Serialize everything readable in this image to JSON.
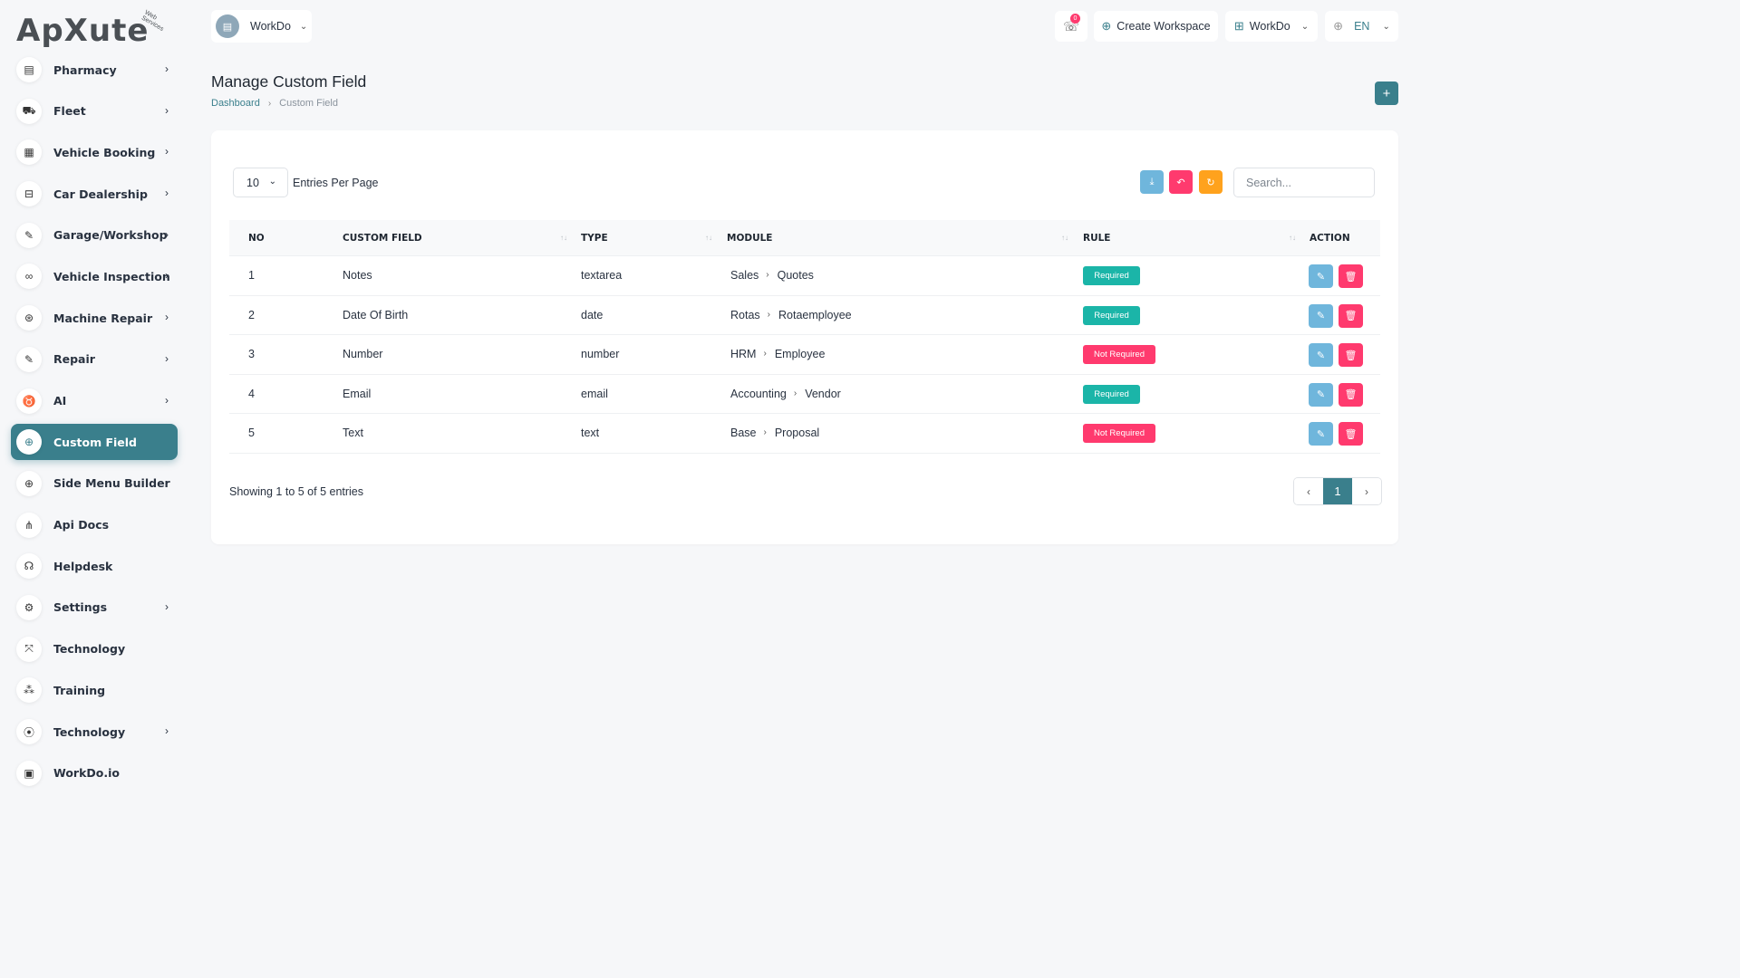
{
  "brand": {
    "logo_text": "ApXute",
    "logo_sub": "Web Services"
  },
  "sidebar": {
    "items": [
      {
        "label": "Pharmacy",
        "icon": "clipboard-icon",
        "glyph": "▤",
        "chevron": true,
        "active": false
      },
      {
        "label": "Fleet",
        "icon": "truck-icon",
        "glyph": "⛟",
        "chevron": true,
        "active": false
      },
      {
        "label": "Vehicle Booking",
        "icon": "calendar-icon",
        "glyph": "▦",
        "chevron": true,
        "active": false
      },
      {
        "label": "Car Dealership",
        "icon": "car-icon",
        "glyph": "⊟",
        "chevron": true,
        "active": false
      },
      {
        "label": "Garage/Workshop",
        "icon": "wrench-icon",
        "glyph": "✎",
        "chevron": true,
        "active": false
      },
      {
        "label": "Vehicle Inspection",
        "icon": "motorbike-icon",
        "glyph": "∞",
        "chevron": true,
        "active": false
      },
      {
        "label": "Machine Repair",
        "icon": "gear-circle-icon",
        "glyph": "⊛",
        "chevron": true,
        "active": false
      },
      {
        "label": "Repair",
        "icon": "tool-icon",
        "glyph": "✎",
        "chevron": true,
        "active": false
      },
      {
        "label": "AI",
        "icon": "ai-icon",
        "glyph": "♉",
        "chevron": true,
        "active": false
      },
      {
        "label": "Custom Field",
        "icon": "plus-circle-icon",
        "glyph": "⊕",
        "chevron": false,
        "active": true
      },
      {
        "label": "Side Menu Builder",
        "icon": "plus-circle-icon",
        "glyph": "⊕",
        "chevron": false,
        "active": false
      },
      {
        "label": "Api Docs",
        "icon": "api-icon",
        "glyph": "⋔",
        "chevron": false,
        "active": false
      },
      {
        "label": "Helpdesk",
        "icon": "headset-icon",
        "glyph": "☊",
        "chevron": false,
        "active": false
      },
      {
        "label": "Settings",
        "icon": "gear-icon",
        "glyph": "⚙",
        "chevron": true,
        "active": false
      },
      {
        "label": "Technology",
        "icon": "network-icon",
        "glyph": "⤧",
        "chevron": false,
        "active": false
      },
      {
        "label": "Training",
        "icon": "training-icon",
        "glyph": "⁂",
        "chevron": false,
        "active": false
      },
      {
        "label": "Technology",
        "icon": "broadcast-icon",
        "glyph": "⦿",
        "chevron": true,
        "active": false
      },
      {
        "label": "WorkDo.io",
        "icon": "document-icon",
        "glyph": "▣",
        "chevron": false,
        "active": false
      }
    ]
  },
  "header": {
    "workspace_label": "WorkDo",
    "notification_count": "0",
    "create_workspace_label": "Create Workspace",
    "workdo_label": "WorkDo",
    "language_label": "EN"
  },
  "page": {
    "title": "Manage Custom Field",
    "breadcrumb": {
      "home": "Dashboard",
      "current": "Custom Field"
    },
    "add_label": "+"
  },
  "table_controls": {
    "entries_value": "10",
    "entries_label": "Entries Per Page",
    "search_placeholder": "Search..."
  },
  "table": {
    "headers": {
      "no": "NO",
      "custom_field": "CUSTOM FIELD",
      "type": "TYPE",
      "module": "MODULE",
      "rule": "RULE",
      "action": "ACTION"
    },
    "rows": [
      {
        "no": "1",
        "field": "Notes",
        "type": "textarea",
        "module": "Sales",
        "submodule": "Quotes",
        "rule": "Required"
      },
      {
        "no": "2",
        "field": "Date Of Birth",
        "type": "date",
        "module": "Rotas",
        "submodule": "Rotaemployee",
        "rule": "Required"
      },
      {
        "no": "3",
        "field": "Number",
        "type": "number",
        "module": "HRM",
        "submodule": "Employee",
        "rule": "Not Required"
      },
      {
        "no": "4",
        "field": "Email",
        "type": "email",
        "module": "Accounting",
        "submodule": "Vendor",
        "rule": "Required"
      },
      {
        "no": "5",
        "field": "Text",
        "type": "text",
        "module": "Base",
        "submodule": "Proposal",
        "rule": "Not Required"
      }
    ]
  },
  "footer": {
    "showing_text": "Showing 1 to 5 of 5 entries",
    "current_page": "1"
  },
  "colors": {
    "primary": "#3a7f8c",
    "required_badge": "#1bb5a8",
    "not_required_badge": "#ff3a6e",
    "edit_button": "#6fb6dc",
    "delete_button": "#ff3a6e",
    "reload_button": "#ffa21d"
  }
}
